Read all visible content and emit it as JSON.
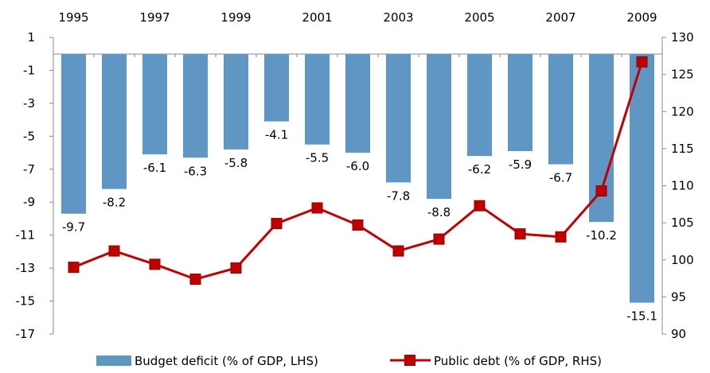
{
  "chart_data": {
    "type": "bar",
    "categories": [
      "1995",
      "1996",
      "1997",
      "1998",
      "1999",
      "2000",
      "2001",
      "2002",
      "2003",
      "2004",
      "2005",
      "2006",
      "2007",
      "2008",
      "2009"
    ],
    "x_tick_labels": [
      "1995",
      "1997",
      "1999",
      "2001",
      "2003",
      "2005",
      "2007",
      "2009"
    ],
    "series": [
      {
        "name": "Budget deficit (% of GDP, LHS)",
        "type": "bar",
        "axis": "left",
        "color": "#6096C4",
        "values": [
          -9.7,
          -8.2,
          -6.1,
          -6.3,
          -5.8,
          -4.1,
          -5.5,
          -6.0,
          -7.8,
          -8.8,
          -6.2,
          -5.9,
          -6.7,
          -10.2,
          -15.1
        ],
        "labels": [
          "-9.7",
          "-8.2",
          "-6.1",
          "-6.3",
          "-5.8",
          "-4.1",
          "-5.5",
          "-6.0",
          "-7.8",
          "-8.8",
          "-6.2",
          "-5.9",
          "-6.7",
          "-10.2",
          "-15.1"
        ]
      },
      {
        "name": "Public debt (% of GDP, RHS)",
        "type": "line",
        "axis": "right",
        "color": "#C00000",
        "values": [
          99.0,
          101.2,
          99.4,
          97.4,
          98.9,
          104.9,
          107.0,
          104.7,
          101.2,
          102.8,
          107.3,
          103.5,
          103.1,
          109.3,
          126.7
        ]
      }
    ],
    "y_left": {
      "min": -17,
      "max": 1,
      "ticks": [
        "1",
        "-1",
        "-3",
        "-5",
        "-7",
        "-9",
        "-11",
        "-13",
        "-15",
        "-17"
      ]
    },
    "y_right": {
      "min": 90,
      "max": 130,
      "ticks": [
        "130",
        "125",
        "120",
        "115",
        "110",
        "105",
        "100",
        "95",
        "90"
      ]
    },
    "x_axis_position": "top",
    "grid": false,
    "legend_position": "bottom"
  }
}
